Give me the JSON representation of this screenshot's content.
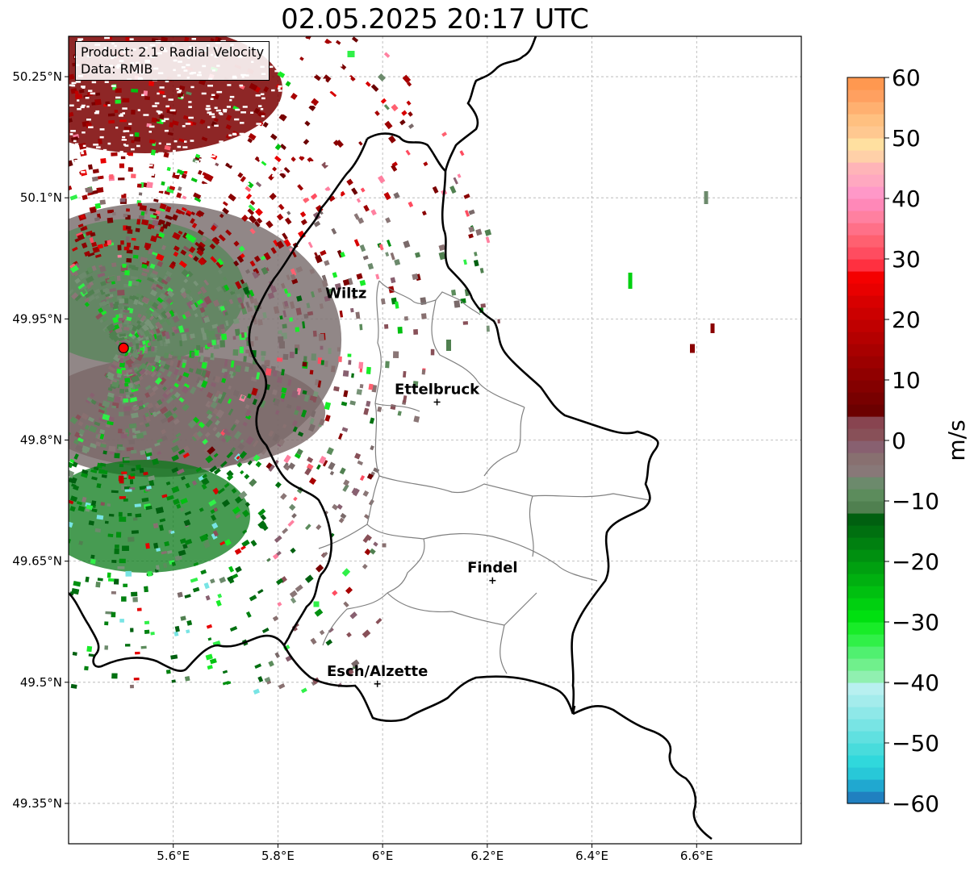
{
  "title": "02.05.2025 20:17 UTC",
  "info": {
    "product": "Product: 2.1° Radial Velocity",
    "data": "Data: RMIB"
  },
  "axes": {
    "lon_range": [
      5.4,
      6.8
    ],
    "lat_range": [
      49.3,
      50.3
    ],
    "x_ticks": [
      {
        "value": 5.6,
        "label": "5.6°E"
      },
      {
        "value": 5.8,
        "label": "5.8°E"
      },
      {
        "value": 6.0,
        "label": "6°E"
      },
      {
        "value": 6.2,
        "label": "6.2°E"
      },
      {
        "value": 6.4,
        "label": "6.4°E"
      },
      {
        "value": 6.6,
        "label": "6.6°E"
      }
    ],
    "y_ticks": [
      {
        "value": 50.25,
        "label": "50.25°N"
      },
      {
        "value": 50.1,
        "label": "50.1°N"
      },
      {
        "value": 49.95,
        "label": "49.95°N"
      },
      {
        "value": 49.8,
        "label": "49.8°N"
      },
      {
        "value": 49.65,
        "label": "49.65°N"
      },
      {
        "value": 49.5,
        "label": "49.5°N"
      },
      {
        "value": 49.35,
        "label": "49.35°N"
      }
    ],
    "grid": true
  },
  "radar_site": {
    "lon": 5.505,
    "lat": 49.914
  },
  "cities": [
    {
      "name": "Wiltz",
      "lon": 5.93,
      "lat": 49.966,
      "marker": false
    },
    {
      "name": "Ettelbruck",
      "lon": 6.104,
      "lat": 49.847,
      "marker": true
    },
    {
      "name": "Findel",
      "lon": 6.21,
      "lat": 49.626,
      "marker": true
    },
    {
      "name": "Esch/Alzette",
      "lon": 5.99,
      "lat": 49.498,
      "marker": true
    }
  ],
  "colorbar": {
    "label": "m/s",
    "range": [
      -60,
      60
    ],
    "ticks": [
      {
        "value": 60,
        "label": "60"
      },
      {
        "value": 50,
        "label": "50"
      },
      {
        "value": 40,
        "label": "40"
      },
      {
        "value": 30,
        "label": "30"
      },
      {
        "value": 20,
        "label": "20"
      },
      {
        "value": 10,
        "label": "10"
      },
      {
        "value": 0,
        "label": "0"
      },
      {
        "value": -10,
        "label": "−10"
      },
      {
        "value": -20,
        "label": "−20"
      },
      {
        "value": -30,
        "label": "−30"
      },
      {
        "value": -40,
        "label": "−40"
      },
      {
        "value": -50,
        "label": "−50"
      },
      {
        "value": -60,
        "label": "−60"
      }
    ],
    "colors": [
      "#2080c0",
      "#20a8d0",
      "#28c8d8",
      "#30d8dc",
      "#48dcdc",
      "#60e0e0",
      "#78e4e4",
      "#8ee8e8",
      "#a4ecec",
      "#b8f0f0",
      "#90f0b0",
      "#70f08c",
      "#50f070",
      "#30f048",
      "#18ec28",
      "#00e010",
      "#00d010",
      "#00c010",
      "#00b010",
      "#00a010",
      "#009010",
      "#008010",
      "#007010",
      "#006010",
      "#508050",
      "#5c8c5c",
      "#6c8a6c",
      "#887878",
      "#887070",
      "#886070",
      "#885058",
      "#884450",
      "#6c0000",
      "#780000",
      "#840000",
      "#900000",
      "#9c0000",
      "#a80000",
      "#b40000",
      "#c00000",
      "#cc0000",
      "#d80000",
      "#e80000",
      "#f40000",
      "#ff3040",
      "#ff4c60",
      "#ff6070",
      "#ff7088",
      "#ff80a0",
      "#ff88b8",
      "#ff98c8",
      "#ffa8c0",
      "#ffb4b8",
      "#ffd0a8",
      "#ffe0a0",
      "#ffc890",
      "#ffc080",
      "#ffb070",
      "#ffa060",
      "#ff9850"
    ]
  },
  "colors": {
    "border": "#000000",
    "canton": "#808080",
    "grid": "#b0b0b0",
    "radar_marker": "#ff0000"
  }
}
